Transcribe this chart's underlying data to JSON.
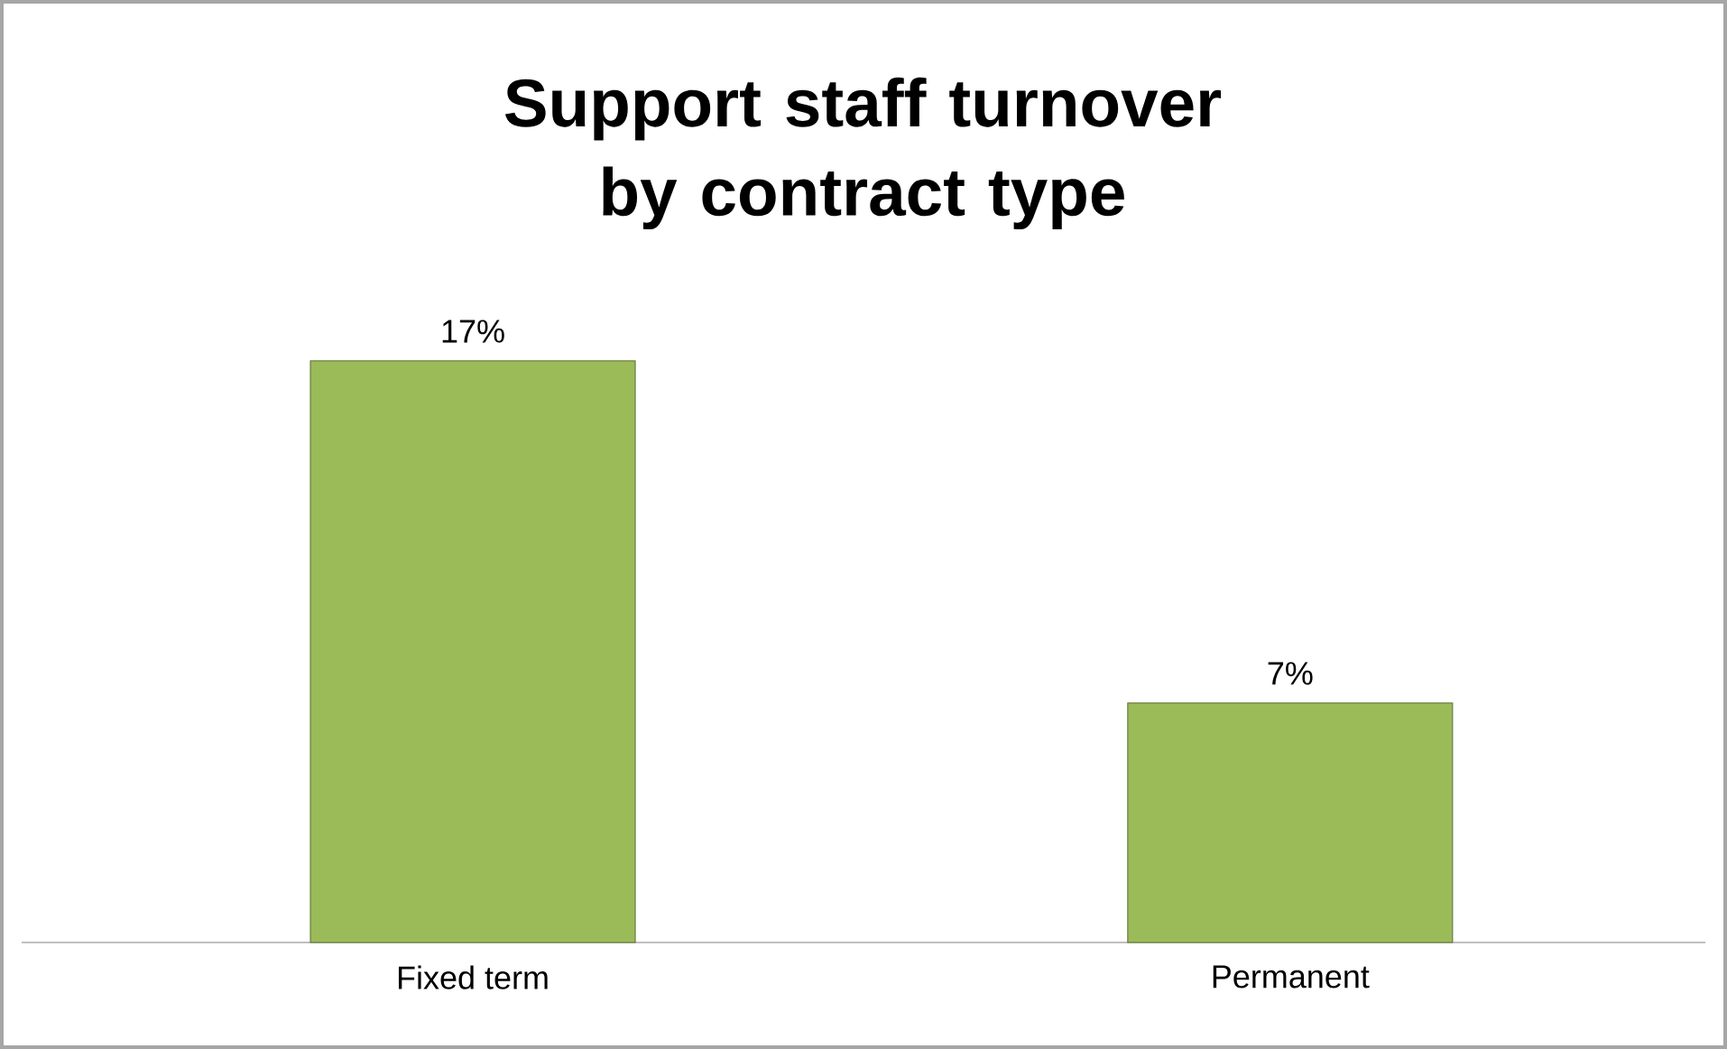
{
  "chart_data": {
    "type": "bar",
    "title": "Support staff turnover by contract type",
    "categories": [
      "Fixed term",
      "Permanent"
    ],
    "values": [
      17,
      7
    ],
    "value_labels": [
      "17%",
      "7%"
    ],
    "color": "#9bbb59"
  }
}
